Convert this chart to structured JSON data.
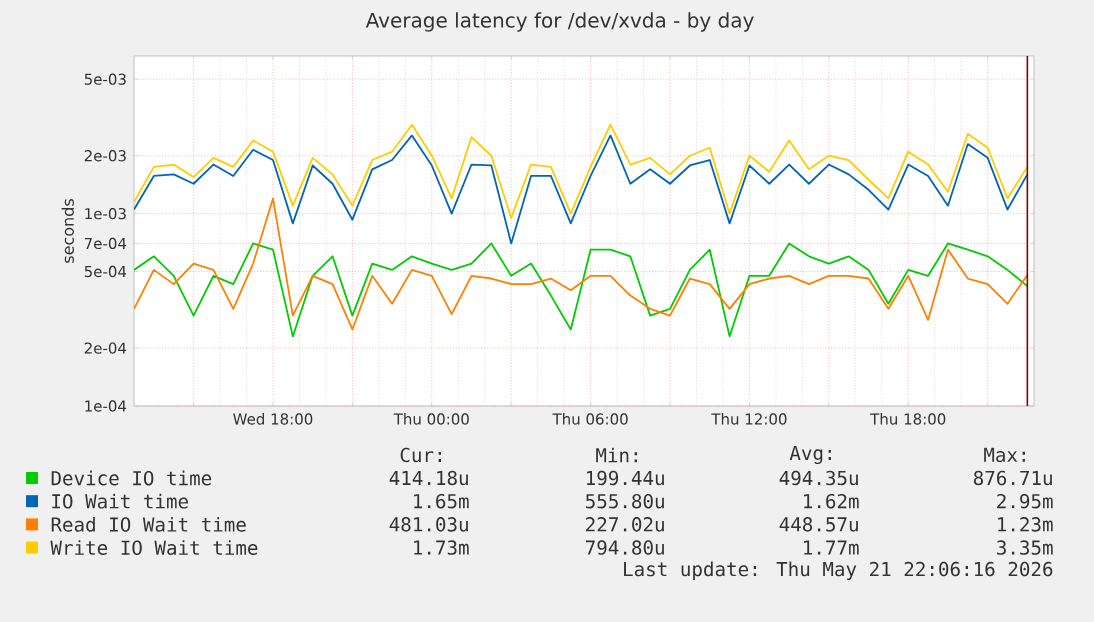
{
  "chart_data": {
    "type": "line",
    "title": "Average latency for /dev/xvda - by day",
    "ylabel": "seconds",
    "log": "y",
    "grid": true,
    "legend": "bottom",
    "x": [
      "2026-05-20T12:45",
      "2026-05-20T13:30",
      "2026-05-20T14:15",
      "2026-05-20T15:00",
      "2026-05-20T15:45",
      "2026-05-20T16:30",
      "2026-05-20T17:15",
      "2026-05-20T18:00",
      "2026-05-20T18:45",
      "2026-05-20T19:30",
      "2026-05-20T20:15",
      "2026-05-20T21:00",
      "2026-05-20T21:45",
      "2026-05-20T22:30",
      "2026-05-20T23:15",
      "2026-05-21T00:00",
      "2026-05-21T00:45",
      "2026-05-21T01:30",
      "2026-05-21T02:15",
      "2026-05-21T03:00",
      "2026-05-21T03:45",
      "2026-05-21T04:30",
      "2026-05-21T05:15",
      "2026-05-21T06:00",
      "2026-05-21T06:45",
      "2026-05-21T07:30",
      "2026-05-21T08:15",
      "2026-05-21T09:00",
      "2026-05-21T09:45",
      "2026-05-21T10:30",
      "2026-05-21T11:15",
      "2026-05-21T12:00",
      "2026-05-21T12:45",
      "2026-05-21T13:30",
      "2026-05-21T14:15",
      "2026-05-21T15:00",
      "2026-05-21T15:45",
      "2026-05-21T16:30",
      "2026-05-21T17:15",
      "2026-05-21T18:00",
      "2026-05-21T18:45",
      "2026-05-21T19:30",
      "2026-05-21T20:15",
      "2026-05-21T21:00",
      "2026-05-21T21:45",
      "2026-05-21T22:30"
    ],
    "xlim": [
      "2026-05-20T12:45",
      "2026-05-21T22:45"
    ],
    "xticks": [
      {
        "value": "2026-05-20T15:00",
        "label": null
      },
      {
        "value": "2026-05-20T18:00",
        "label": "Wed 18:00"
      },
      {
        "value": "2026-05-20T21:00",
        "label": null
      },
      {
        "value": "2026-05-21T00:00",
        "label": "Thu 00:00"
      },
      {
        "value": "2026-05-21T03:00",
        "label": null
      },
      {
        "value": "2026-05-21T06:00",
        "label": "Thu 06:00"
      },
      {
        "value": "2026-05-21T09:00",
        "label": null
      },
      {
        "value": "2026-05-21T12:00",
        "label": "Thu 12:00"
      },
      {
        "value": "2026-05-21T15:00",
        "label": null
      },
      {
        "value": "2026-05-21T18:00",
        "label": "Thu 18:00"
      },
      {
        "value": "2026-05-21T21:00",
        "label": null
      }
    ],
    "ylim": [
      0.0001,
      0.0066
    ],
    "yticks": [
      {
        "value": 0.0001,
        "label": "1e-04"
      },
      {
        "value": 0.0002,
        "label": "2e-04"
      },
      {
        "value": 0.0005,
        "label": "5e-04"
      },
      {
        "value": 0.0007,
        "label": "7e-04"
      },
      {
        "value": 0.001,
        "label": "1e-03"
      },
      {
        "value": 0.002,
        "label": "2e-03"
      },
      {
        "value": 0.005,
        "label": "5e-03"
      }
    ],
    "series": [
      {
        "name": "Device IO time",
        "color": "#00cc00",
        "values": [
          0.00051,
          0.0006,
          0.000475,
          0.000295,
          0.000475,
          0.00043,
          0.0007,
          0.00065,
          0.00023,
          0.000475,
          0.0006,
          0.000295,
          0.00055,
          0.00051,
          0.0006,
          0.00055,
          0.00051,
          0.00055,
          0.0007,
          0.000475,
          0.00055,
          0.000375,
          0.00025,
          0.00065,
          0.00065,
          0.0006,
          0.000295,
          0.00032,
          0.00051,
          0.00065,
          0.00023,
          0.000475,
          0.000475,
          0.0007,
          0.0006,
          0.00055,
          0.0006,
          0.00051,
          0.00034,
          0.00051,
          0.000475,
          0.0007,
          0.00065,
          0.0006,
          0.00051,
          0.00042
        ]
      },
      {
        "name": "IO Wait time",
        "color": "#0066b3",
        "values": [
          0.00105,
          0.00157,
          0.0016,
          0.00143,
          0.0018,
          0.00157,
          0.00215,
          0.0019,
          0.00089,
          0.00178,
          0.00143,
          0.00093,
          0.0017,
          0.0019,
          0.00255,
          0.00178,
          0.001,
          0.0018,
          0.00178,
          0.0007,
          0.00157,
          0.00157,
          0.00089,
          0.00157,
          0.00255,
          0.00143,
          0.0017,
          0.00143,
          0.00178,
          0.0019,
          0.00089,
          0.00178,
          0.00143,
          0.0018,
          0.00143,
          0.0018,
          0.0016,
          0.00133,
          0.00105,
          0.0018,
          0.00157,
          0.0011,
          0.0023,
          0.00195,
          0.00105,
          0.0016
        ]
      },
      {
        "name": "Read IO Wait time",
        "color": "#ff8000",
        "values": [
          0.00032,
          0.00051,
          0.00043,
          0.00055,
          0.00051,
          0.00032,
          0.00055,
          0.0012,
          0.000295,
          0.000475,
          0.00043,
          0.00025,
          0.000475,
          0.00034,
          0.00051,
          0.000475,
          0.0003,
          0.000475,
          0.00046,
          0.00043,
          0.00043,
          0.00046,
          0.0004,
          0.000475,
          0.000475,
          0.000375,
          0.00032,
          0.000295,
          0.00046,
          0.00043,
          0.00032,
          0.00043,
          0.00046,
          0.000475,
          0.00043,
          0.000475,
          0.000475,
          0.00046,
          0.00032,
          0.000475,
          0.00028,
          0.00065,
          0.00046,
          0.00043,
          0.00034,
          0.00048
        ]
      },
      {
        "name": "Write IO Wait time",
        "color": "#ffcc00",
        "values": [
          0.00115,
          0.00175,
          0.0018,
          0.00155,
          0.00195,
          0.00175,
          0.0024,
          0.0021,
          0.0011,
          0.00195,
          0.0016,
          0.0011,
          0.0019,
          0.0021,
          0.0029,
          0.002,
          0.0012,
          0.0025,
          0.002,
          0.00095,
          0.0018,
          0.00175,
          0.001,
          0.00175,
          0.0029,
          0.0018,
          0.00195,
          0.0016,
          0.002,
          0.0022,
          0.001,
          0.002,
          0.00165,
          0.0024,
          0.0017,
          0.002,
          0.0019,
          0.0015,
          0.0012,
          0.0021,
          0.0018,
          0.0013,
          0.0026,
          0.0022,
          0.0012,
          0.00175
        ]
      }
    ],
    "ref_lines": [
      {
        "axis": "x",
        "value": "2026-05-21T22:30",
        "color": "#800000"
      }
    ],
    "annotations": [
      "Cur:",
      "Min:",
      "Avg:",
      "Max:",
      "414.18u",
      "199.44u",
      "494.35u",
      "876.71u",
      "1.65m",
      "555.80u",
      "1.62m",
      "2.95m",
      "481.03u",
      "227.02u",
      "448.57u",
      "1.23m",
      "1.73m",
      "794.80u",
      "1.77m",
      "3.35m",
      "Last update: Thu May 21 22:06:16 2026"
    ]
  }
}
